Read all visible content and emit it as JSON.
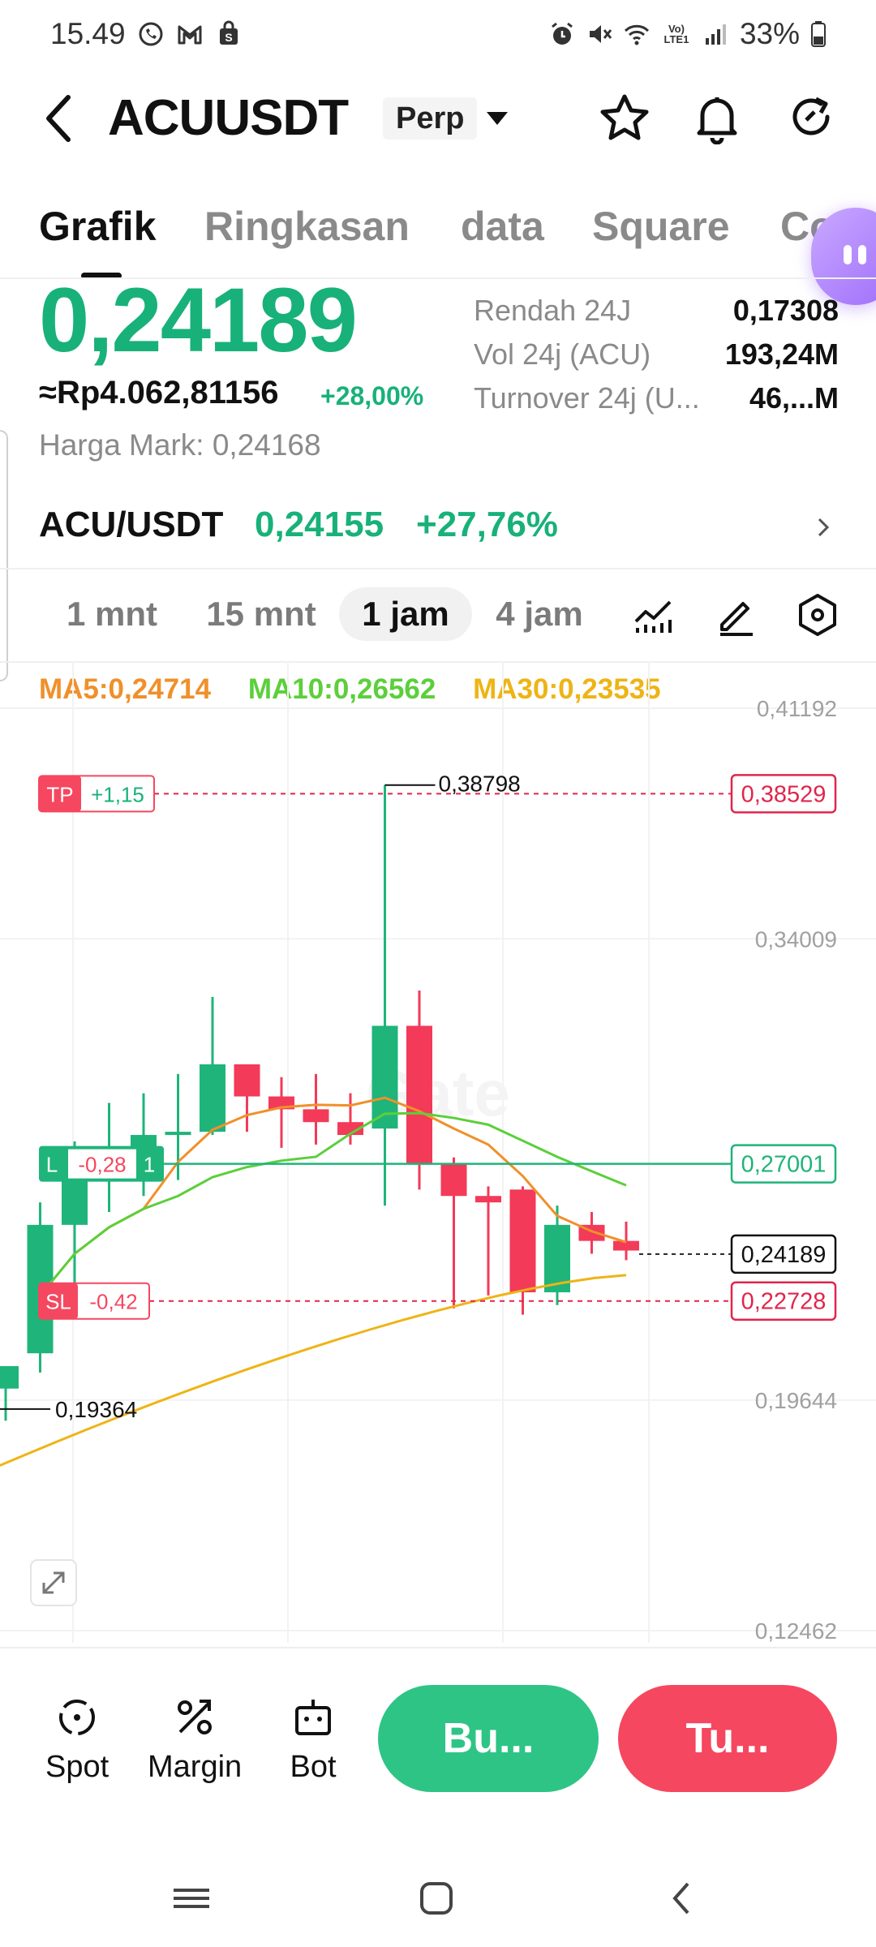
{
  "status_bar": {
    "time": "15.49",
    "battery": "33%",
    "network": "LTE1"
  },
  "header": {
    "pair": "ACUUSDT",
    "contract_type": "Perp"
  },
  "tabs": [
    "Grafik",
    "Ringkasan",
    "data",
    "Square",
    "Copy"
  ],
  "price": {
    "last": "0,24189",
    "idr": "≈Rp4.062,81156",
    "change_pct": "+28,00%",
    "mark_label": "Harga Mark:",
    "mark_value": "0,24168"
  },
  "stats": [
    {
      "label": "Rendah 24J",
      "value": "0,17308"
    },
    {
      "label": "Vol 24j (ACU)",
      "value": "193,24M"
    },
    {
      "label": "Turnover 24j (U...",
      "value": "46,...M"
    }
  ],
  "spot": {
    "pair": "ACU/USDT",
    "price": "0,24155",
    "change_pct": "+27,76%"
  },
  "timeframes": {
    "items": [
      "1 mnt",
      "15 mnt",
      "1 jam",
      "4 jam"
    ],
    "active": "1 jam"
  },
  "chart_data": {
    "type": "candlestick",
    "indicators": [
      {
        "name": "MA5",
        "value": "0,24714",
        "color": "#f0902a"
      },
      {
        "name": "MA10",
        "value": "0,26562",
        "color": "#5ccf3b"
      },
      {
        "name": "MA30",
        "value": "0,23535",
        "color": "#eeb416"
      }
    ],
    "y_axis_ticks": [
      "0,41192",
      "0,34009",
      "0,19644",
      "0,12462"
    ],
    "ylim": [
      0.12462,
      0.41192
    ],
    "y_ticks_values": [
      0.41192,
      0.34009,
      0.19644,
      0.12462
    ],
    "high_label": "0,38798",
    "low_label": "0,19364",
    "high_value": 0.38798,
    "low_value": 0.19364,
    "candles": [
      {
        "o": 0.2,
        "h": 0.205,
        "l": 0.19,
        "c": 0.207
      },
      {
        "o": 0.211,
        "h": 0.258,
        "l": 0.205,
        "c": 0.251
      },
      {
        "o": 0.251,
        "h": 0.277,
        "l": 0.23,
        "c": 0.268
      },
      {
        "o": 0.268,
        "h": 0.289,
        "l": 0.255,
        "c": 0.275
      },
      {
        "o": 0.275,
        "h": 0.292,
        "l": 0.26,
        "c": 0.279
      },
      {
        "o": 0.279,
        "h": 0.298,
        "l": 0.265,
        "c": 0.28
      },
      {
        "o": 0.28,
        "h": 0.322,
        "l": 0.279,
        "c": 0.301
      },
      {
        "o": 0.301,
        "h": 0.301,
        "l": 0.28,
        "c": 0.291
      },
      {
        "o": 0.291,
        "h": 0.297,
        "l": 0.275,
        "c": 0.287
      },
      {
        "o": 0.287,
        "h": 0.298,
        "l": 0.276,
        "c": 0.283
      },
      {
        "o": 0.283,
        "h": 0.292,
        "l": 0.276,
        "c": 0.279
      },
      {
        "o": 0.281,
        "h": 0.388,
        "l": 0.257,
        "c": 0.313
      },
      {
        "o": 0.313,
        "h": 0.324,
        "l": 0.262,
        "c": 0.27
      },
      {
        "o": 0.27,
        "h": 0.272,
        "l": 0.225,
        "c": 0.26
      },
      {
        "o": 0.26,
        "h": 0.263,
        "l": 0.229,
        "c": 0.258
      },
      {
        "o": 0.262,
        "h": 0.263,
        "l": 0.223,
        "c": 0.23
      },
      {
        "o": 0.23,
        "h": 0.257,
        "l": 0.226,
        "c": 0.251
      },
      {
        "o": 0.251,
        "h": 0.255,
        "l": 0.242,
        "c": 0.246
      },
      {
        "o": 0.246,
        "h": 0.252,
        "l": 0.24,
        "c": 0.243
      }
    ],
    "colors": {
      "up": "#1fb47a",
      "down": "#f33a58"
    },
    "xlabel": "",
    "ylabel": ""
  },
  "orders": {
    "tp": {
      "tag": "TP",
      "pnl": "+1,15",
      "price": "0,38529",
      "value": 0.38529
    },
    "entry": {
      "tag": "L",
      "pnl": "-0,28",
      "qty": "1",
      "price": "0,27001",
      "value": 0.27001
    },
    "sl": {
      "tag": "SL",
      "pnl": "-0,42",
      "price": "0,22728",
      "value": 0.22728
    },
    "current": {
      "price": "0,24189",
      "value": 0.24189
    }
  },
  "watermark": "Gate",
  "actions": {
    "spot": "Spot",
    "margin": "Margin",
    "bot": "Bot",
    "buy": "Bu...",
    "sell": "Tu..."
  },
  "colors": {
    "green": "#18b17a",
    "red": "#f5475f",
    "tp_red": "#e0264b"
  }
}
